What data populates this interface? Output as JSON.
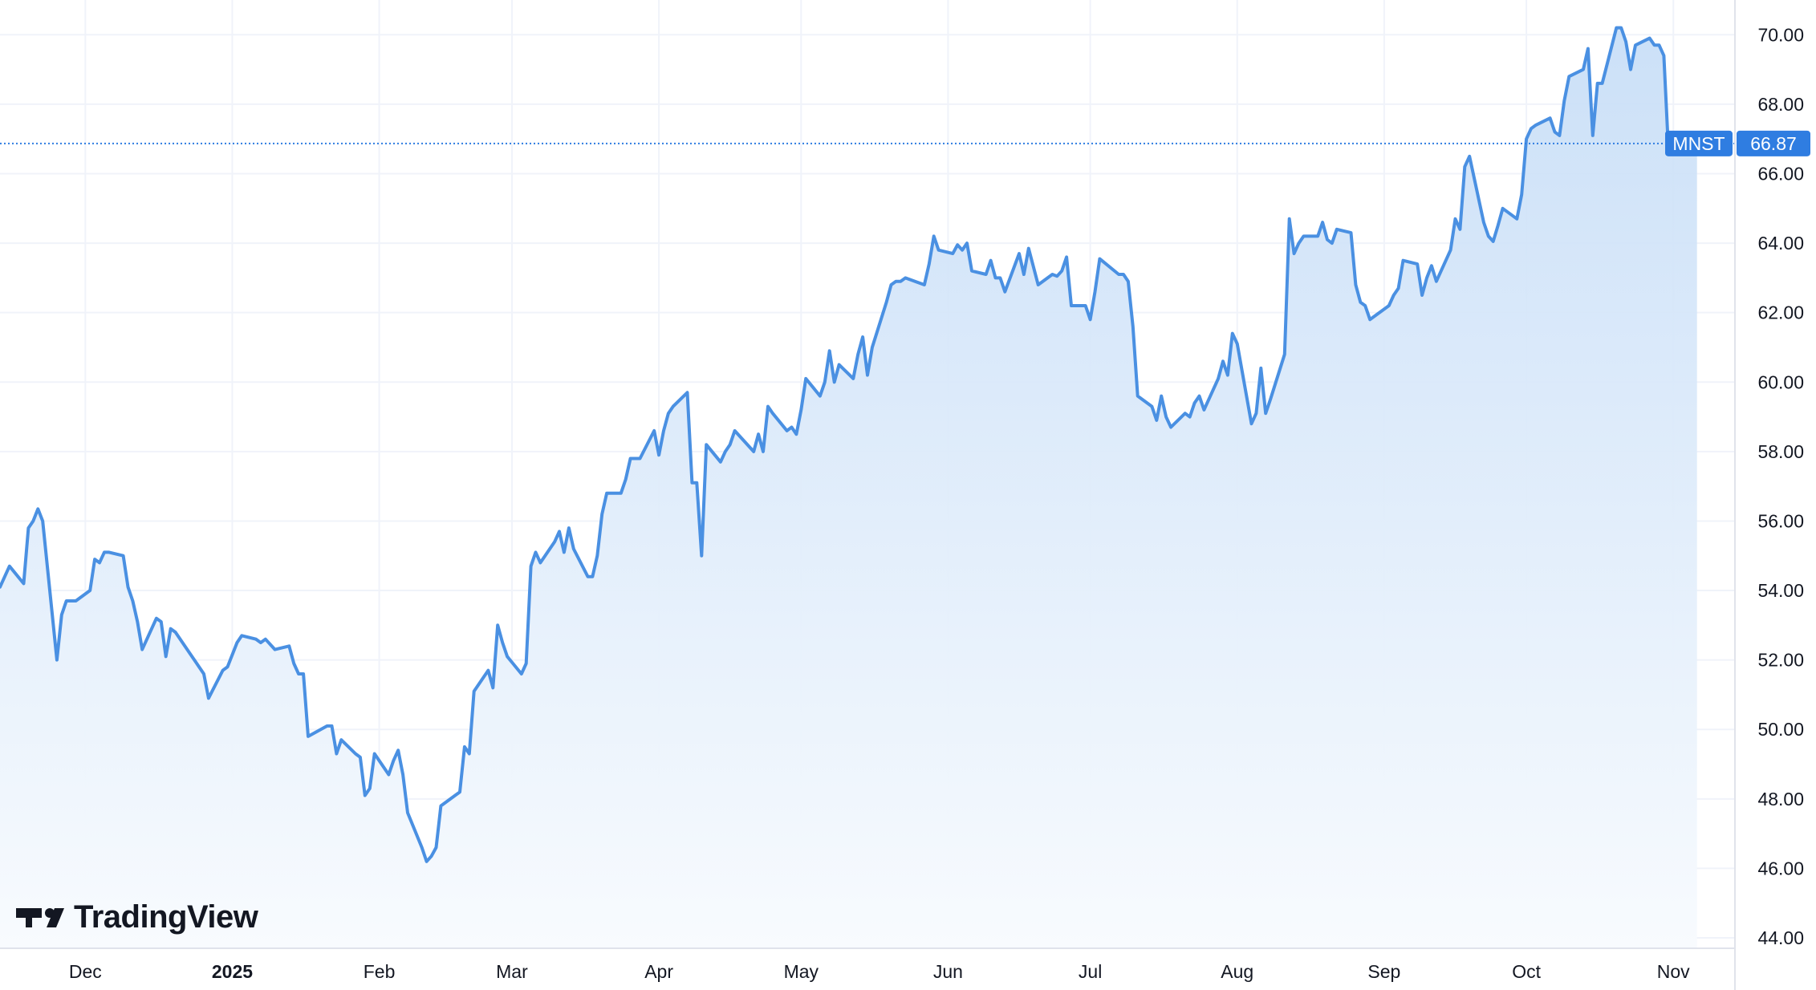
{
  "brand": {
    "name": "TradingView",
    "logo_icon": "tradingview-logo-icon"
  },
  "colors": {
    "line": "#4a90e2",
    "fill_top": "#c6ddf7",
    "fill_bottom": "#f8fbfe",
    "label_bg": "#2f7de1",
    "grid": "#f0f3fa"
  },
  "chart_data": {
    "type": "area",
    "symbol": "MNST",
    "last_price": 66.87,
    "last_price_label": "66.87",
    "ylim": [
      43.7,
      71.0
    ],
    "yticks": [
      44,
      46,
      48,
      50,
      52,
      54,
      56,
      58,
      60,
      62,
      64,
      66,
      68,
      70
    ],
    "ytick_labels": [
      "44.00",
      "46.00",
      "48.00",
      "50.00",
      "52.00",
      "54.00",
      "56.00",
      "58.00",
      "60.00",
      "62.00",
      "64.00",
      "66.00",
      "68.00",
      "70.00"
    ],
    "x_start": "2024-11-13",
    "x_end": "2025-11-14",
    "xticks": [
      {
        "date": "2024-12-01",
        "label": "Dec",
        "bold": false
      },
      {
        "date": "2025-01-01",
        "label": "2025",
        "bold": true
      },
      {
        "date": "2025-02-01",
        "label": "Feb",
        "bold": false
      },
      {
        "date": "2025-03-01",
        "label": "Mar",
        "bold": false
      },
      {
        "date": "2025-04-01",
        "label": "Apr",
        "bold": false
      },
      {
        "date": "2025-05-01",
        "label": "May",
        "bold": false
      },
      {
        "date": "2025-06-01",
        "label": "Jun",
        "bold": false
      },
      {
        "date": "2025-07-01",
        "label": "Jul",
        "bold": false
      },
      {
        "date": "2025-08-01",
        "label": "Aug",
        "bold": false
      },
      {
        "date": "2025-09-01",
        "label": "Sep",
        "bold": false
      },
      {
        "date": "2025-10-01",
        "label": "Oct",
        "bold": false
      },
      {
        "date": "2025-11-01",
        "label": "Nov",
        "bold": false
      }
    ],
    "points": [
      [
        "2024-11-13",
        54.1
      ],
      [
        "2024-11-14",
        54.4
      ],
      [
        "2024-11-15",
        54.7
      ],
      [
        "2024-11-18",
        54.2
      ],
      [
        "2024-11-19",
        55.8
      ],
      [
        "2024-11-20",
        56.0
      ],
      [
        "2024-11-21",
        56.35
      ],
      [
        "2024-11-22",
        56.0
      ],
      [
        "2024-11-25",
        52.0
      ],
      [
        "2024-11-26",
        53.3
      ],
      [
        "2024-11-27",
        53.7
      ],
      [
        "2024-11-29",
        53.7
      ],
      [
        "2024-12-02",
        54.0
      ],
      [
        "2024-12-03",
        54.9
      ],
      [
        "2024-12-04",
        54.8
      ],
      [
        "2024-12-05",
        55.1
      ],
      [
        "2024-12-06",
        55.1
      ],
      [
        "2024-12-09",
        55.0
      ],
      [
        "2024-12-10",
        54.1
      ],
      [
        "2024-12-11",
        53.7
      ],
      [
        "2024-12-12",
        53.1
      ],
      [
        "2024-12-13",
        52.3
      ],
      [
        "2024-12-16",
        53.2
      ],
      [
        "2024-12-17",
        53.1
      ],
      [
        "2024-12-18",
        52.1
      ],
      [
        "2024-12-19",
        52.9
      ],
      [
        "2024-12-20",
        52.8
      ],
      [
        "2024-12-23",
        52.2
      ],
      [
        "2024-12-24",
        52.0
      ],
      [
        "2024-12-26",
        51.6
      ],
      [
        "2024-12-27",
        50.9
      ],
      [
        "2024-12-30",
        51.7
      ],
      [
        "2024-12-31",
        51.8
      ],
      [
        "2025-01-02",
        52.5
      ],
      [
        "2025-01-03",
        52.7
      ],
      [
        "2025-01-06",
        52.6
      ],
      [
        "2025-01-07",
        52.5
      ],
      [
        "2025-01-08",
        52.6
      ],
      [
        "2025-01-10",
        52.3
      ],
      [
        "2025-01-13",
        52.4
      ],
      [
        "2025-01-14",
        51.9
      ],
      [
        "2025-01-15",
        51.6
      ],
      [
        "2025-01-16",
        51.6
      ],
      [
        "2025-01-17",
        49.8
      ],
      [
        "2025-01-21",
        50.1
      ],
      [
        "2025-01-22",
        50.1
      ],
      [
        "2025-01-23",
        49.3
      ],
      [
        "2025-01-24",
        49.7
      ],
      [
        "2025-01-27",
        49.3
      ],
      [
        "2025-01-28",
        49.2
      ],
      [
        "2025-01-29",
        48.1
      ],
      [
        "2025-01-30",
        48.3
      ],
      [
        "2025-01-31",
        49.3
      ],
      [
        "2025-02-03",
        48.7
      ],
      [
        "2025-02-04",
        49.1
      ],
      [
        "2025-02-05",
        49.4
      ],
      [
        "2025-02-06",
        48.7
      ],
      [
        "2025-02-07",
        47.6
      ],
      [
        "2025-02-10",
        46.6
      ],
      [
        "2025-02-11",
        46.2
      ],
      [
        "2025-02-12",
        46.35
      ],
      [
        "2025-02-13",
        46.6
      ],
      [
        "2025-02-14",
        47.8
      ],
      [
        "2025-02-17",
        48.1
      ],
      [
        "2025-02-18",
        48.2
      ],
      [
        "2025-02-19",
        49.5
      ],
      [
        "2025-02-20",
        49.3
      ],
      [
        "2025-02-21",
        51.1
      ],
      [
        "2025-02-24",
        51.7
      ],
      [
        "2025-02-25",
        51.2
      ],
      [
        "2025-02-26",
        53.0
      ],
      [
        "2025-02-27",
        52.5
      ],
      [
        "2025-02-28",
        52.1
      ],
      [
        "2025-03-03",
        51.6
      ],
      [
        "2025-03-04",
        51.9
      ],
      [
        "2025-03-05",
        54.7
      ],
      [
        "2025-03-06",
        55.1
      ],
      [
        "2025-03-07",
        54.8
      ],
      [
        "2025-03-10",
        55.4
      ],
      [
        "2025-03-11",
        55.7
      ],
      [
        "2025-03-12",
        55.1
      ],
      [
        "2025-03-13",
        55.8
      ],
      [
        "2025-03-14",
        55.2
      ],
      [
        "2025-03-17",
        54.4
      ],
      [
        "2025-03-18",
        54.4
      ],
      [
        "2025-03-19",
        55.0
      ],
      [
        "2025-03-20",
        56.2
      ],
      [
        "2025-03-21",
        56.8
      ],
      [
        "2025-03-24",
        56.8
      ],
      [
        "2025-03-25",
        57.2
      ],
      [
        "2025-03-26",
        57.8
      ],
      [
        "2025-03-27",
        57.8
      ],
      [
        "2025-03-28",
        57.8
      ],
      [
        "2025-03-31",
        58.6
      ],
      [
        "2025-04-01",
        57.9
      ],
      [
        "2025-04-02",
        58.6
      ],
      [
        "2025-04-03",
        59.1
      ],
      [
        "2025-04-04",
        59.3
      ],
      [
        "2025-04-07",
        59.7
      ],
      [
        "2025-04-08",
        57.1
      ],
      [
        "2025-04-09",
        57.1
      ],
      [
        "2025-04-10",
        55.0
      ],
      [
        "2025-04-11",
        58.2
      ],
      [
        "2025-04-14",
        57.7
      ],
      [
        "2025-04-15",
        58.0
      ],
      [
        "2025-04-16",
        58.2
      ],
      [
        "2025-04-17",
        58.6
      ],
      [
        "2025-04-21",
        58.0
      ],
      [
        "2025-04-22",
        58.5
      ],
      [
        "2025-04-23",
        58.0
      ],
      [
        "2025-04-24",
        59.3
      ],
      [
        "2025-04-25",
        59.1
      ],
      [
        "2025-04-28",
        58.6
      ],
      [
        "2025-04-29",
        58.7
      ],
      [
        "2025-04-30",
        58.5
      ],
      [
        "2025-05-01",
        59.2
      ],
      [
        "2025-05-02",
        60.1
      ],
      [
        "2025-05-05",
        59.6
      ],
      [
        "2025-05-06",
        60.0
      ],
      [
        "2025-05-07",
        60.9
      ],
      [
        "2025-05-08",
        60.0
      ],
      [
        "2025-05-09",
        60.5
      ],
      [
        "2025-05-12",
        60.1
      ],
      [
        "2025-05-13",
        60.8
      ],
      [
        "2025-05-14",
        61.3
      ],
      [
        "2025-05-15",
        60.2
      ],
      [
        "2025-05-16",
        61.0
      ],
      [
        "2025-05-19",
        62.3
      ],
      [
        "2025-05-20",
        62.8
      ],
      [
        "2025-05-21",
        62.9
      ],
      [
        "2025-05-22",
        62.9
      ],
      [
        "2025-05-23",
        63.0
      ],
      [
        "2025-05-27",
        62.8
      ],
      [
        "2025-05-28",
        63.4
      ],
      [
        "2025-05-29",
        64.2
      ],
      [
        "2025-05-30",
        63.8
      ],
      [
        "2025-06-02",
        63.7
      ],
      [
        "2025-06-03",
        63.95
      ],
      [
        "2025-06-04",
        63.8
      ],
      [
        "2025-06-05",
        64.0
      ],
      [
        "2025-06-06",
        63.2
      ],
      [
        "2025-06-09",
        63.1
      ],
      [
        "2025-06-10",
        63.5
      ],
      [
        "2025-06-11",
        63.0
      ],
      [
        "2025-06-12",
        63.0
      ],
      [
        "2025-06-13",
        62.6
      ],
      [
        "2025-06-16",
        63.7
      ],
      [
        "2025-06-17",
        63.1
      ],
      [
        "2025-06-18",
        63.85
      ],
      [
        "2025-06-20",
        62.8
      ],
      [
        "2025-06-23",
        63.1
      ],
      [
        "2025-06-24",
        63.05
      ],
      [
        "2025-06-25",
        63.2
      ],
      [
        "2025-06-26",
        63.6
      ],
      [
        "2025-06-27",
        62.2
      ],
      [
        "2025-06-30",
        62.2
      ],
      [
        "2025-07-01",
        61.8
      ],
      [
        "2025-07-02",
        62.6
      ],
      [
        "2025-07-03",
        63.55
      ],
      [
        "2025-07-07",
        63.1
      ],
      [
        "2025-07-08",
        63.1
      ],
      [
        "2025-07-09",
        62.9
      ],
      [
        "2025-07-10",
        61.6
      ],
      [
        "2025-07-11",
        59.6
      ],
      [
        "2025-07-14",
        59.3
      ],
      [
        "2025-07-15",
        58.9
      ],
      [
        "2025-07-16",
        59.6
      ],
      [
        "2025-07-17",
        59.0
      ],
      [
        "2025-07-18",
        58.7
      ],
      [
        "2025-07-21",
        59.1
      ],
      [
        "2025-07-22",
        59.0
      ],
      [
        "2025-07-23",
        59.4
      ],
      [
        "2025-07-24",
        59.6
      ],
      [
        "2025-07-25",
        59.2
      ],
      [
        "2025-07-28",
        60.1
      ],
      [
        "2025-07-29",
        60.6
      ],
      [
        "2025-07-30",
        60.2
      ],
      [
        "2025-07-31",
        61.4
      ],
      [
        "2025-08-01",
        61.1
      ],
      [
        "2025-08-04",
        58.8
      ],
      [
        "2025-08-05",
        59.1
      ],
      [
        "2025-08-06",
        60.4
      ],
      [
        "2025-08-07",
        59.1
      ],
      [
        "2025-08-08",
        59.5
      ],
      [
        "2025-08-11",
        60.8
      ],
      [
        "2025-08-12",
        64.7
      ],
      [
        "2025-08-13",
        63.7
      ],
      [
        "2025-08-14",
        64.0
      ],
      [
        "2025-08-15",
        64.2
      ],
      [
        "2025-08-18",
        64.2
      ],
      [
        "2025-08-19",
        64.6
      ],
      [
        "2025-08-20",
        64.1
      ],
      [
        "2025-08-21",
        64.0
      ],
      [
        "2025-08-22",
        64.4
      ],
      [
        "2025-08-25",
        64.3
      ],
      [
        "2025-08-26",
        62.8
      ],
      [
        "2025-08-27",
        62.3
      ],
      [
        "2025-08-28",
        62.2
      ],
      [
        "2025-08-29",
        61.8
      ],
      [
        "2025-09-02",
        62.2
      ],
      [
        "2025-09-03",
        62.5
      ],
      [
        "2025-09-04",
        62.7
      ],
      [
        "2025-09-05",
        63.5
      ],
      [
        "2025-09-08",
        63.4
      ],
      [
        "2025-09-09",
        62.5
      ],
      [
        "2025-09-10",
        63.0
      ],
      [
        "2025-09-11",
        63.35
      ],
      [
        "2025-09-12",
        62.9
      ],
      [
        "2025-09-15",
        63.8
      ],
      [
        "2025-09-16",
        64.7
      ],
      [
        "2025-09-17",
        64.4
      ],
      [
        "2025-09-18",
        66.2
      ],
      [
        "2025-09-19",
        66.5
      ],
      [
        "2025-09-22",
        64.6
      ],
      [
        "2025-09-23",
        64.2
      ],
      [
        "2025-09-24",
        64.05
      ],
      [
        "2025-09-25",
        64.5
      ],
      [
        "2025-09-26",
        65.0
      ],
      [
        "2025-09-29",
        64.7
      ],
      [
        "2025-09-30",
        65.4
      ],
      [
        "2025-10-01",
        67.0
      ],
      [
        "2025-10-02",
        67.3
      ],
      [
        "2025-10-03",
        67.4
      ],
      [
        "2025-10-06",
        67.6
      ],
      [
        "2025-10-07",
        67.2
      ],
      [
        "2025-10-08",
        67.1
      ],
      [
        "2025-10-09",
        68.1
      ],
      [
        "2025-10-10",
        68.8
      ],
      [
        "2025-10-13",
        69.0
      ],
      [
        "2025-10-14",
        69.6
      ],
      [
        "2025-10-15",
        67.1
      ],
      [
        "2025-10-16",
        68.6
      ],
      [
        "2025-10-17",
        68.6
      ],
      [
        "2025-10-20",
        70.2
      ],
      [
        "2025-10-21",
        70.2
      ],
      [
        "2025-10-22",
        69.8
      ],
      [
        "2025-10-23",
        69.0
      ],
      [
        "2025-10-24",
        69.7
      ],
      [
        "2025-10-27",
        69.9
      ],
      [
        "2025-10-28",
        69.7
      ],
      [
        "2025-10-29",
        69.7
      ],
      [
        "2025-10-30",
        69.4
      ],
      [
        "2025-10-31",
        66.6
      ],
      [
        "2025-11-03",
        66.6
      ],
      [
        "2025-11-04",
        66.8
      ],
      [
        "2025-11-05",
        66.6
      ],
      [
        "2025-11-06",
        66.87
      ]
    ],
    "grid": true,
    "legend": "none"
  }
}
